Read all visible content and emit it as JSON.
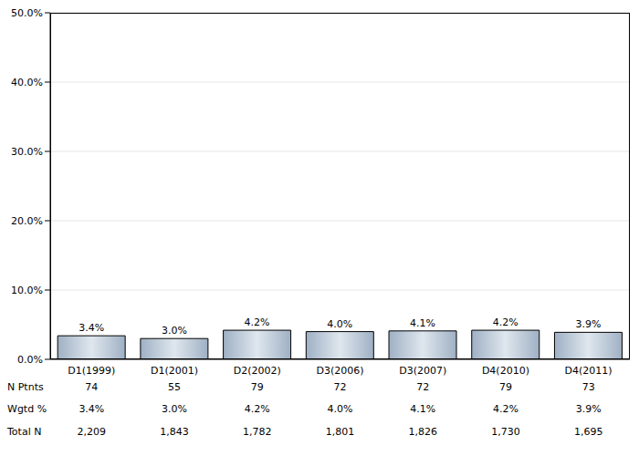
{
  "chart_data": {
    "type": "bar",
    "categories": [
      "D1(1999)",
      "D1(2001)",
      "D2(2002)",
      "D3(2006)",
      "D3(2007)",
      "D4(2010)",
      "D4(2011)"
    ],
    "values": [
      3.4,
      3.0,
      4.2,
      4.0,
      4.1,
      4.2,
      3.9
    ],
    "value_labels": [
      "3.4%",
      "3.0%",
      "4.2%",
      "4.0%",
      "4.1%",
      "4.2%",
      "3.9%"
    ],
    "data_labels": true,
    "color": "#9fb0c4",
    "ylim": [
      0,
      50
    ],
    "yticks": [
      {
        "value": 0,
        "label": "0.0%"
      },
      {
        "value": 10,
        "label": "10.0%"
      },
      {
        "value": 20,
        "label": "20.0%"
      },
      {
        "value": 30,
        "label": "30.0%"
      },
      {
        "value": 40,
        "label": "40.0%"
      },
      {
        "value": 50,
        "label": "50.0%"
      }
    ],
    "grid": true
  },
  "table": {
    "rows": [
      {
        "label": "N Ptnts",
        "values": [
          "74",
          "55",
          "79",
          "72",
          "72",
          "79",
          "73"
        ]
      },
      {
        "label": "Wgtd %",
        "values": [
          "3.4%",
          "3.0%",
          "4.2%",
          "4.0%",
          "4.1%",
          "4.2%",
          "3.9%"
        ]
      },
      {
        "label": "Total N",
        "values": [
          "2,209",
          "1,843",
          "1,782",
          "1,801",
          "1,826",
          "1,730",
          "1,695"
        ]
      }
    ]
  }
}
